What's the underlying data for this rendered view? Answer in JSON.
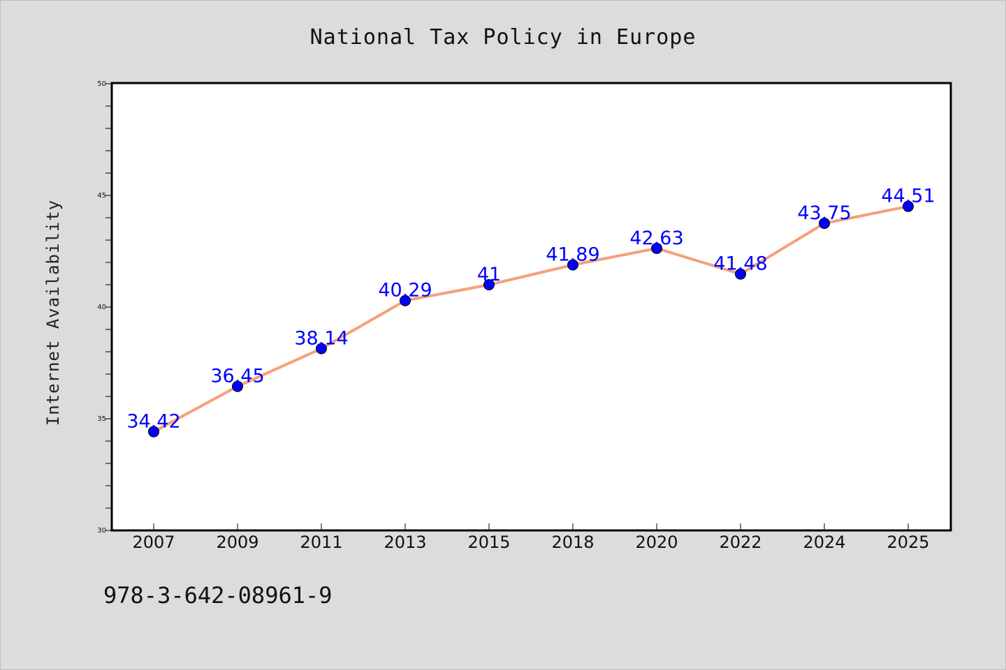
{
  "chart_data": {
    "type": "line",
    "title": "National Tax Policy in Europe",
    "xlabel": "",
    "ylabel": "Internet Availability",
    "categories": [
      "2007",
      "2009",
      "2011",
      "2013",
      "2015",
      "2018",
      "2020",
      "2022",
      "2024",
      "2025"
    ],
    "series": [
      {
        "values": [
          34.42,
          36.45,
          38.14,
          40.29,
          41,
          41.89,
          42.63,
          41.48,
          43.75,
          44.51
        ],
        "data_labels": [
          "34.42",
          "36.45",
          "38.14",
          "40.29",
          "41",
          "41.89",
          "42.63",
          "41.48",
          "43.75",
          "44.51"
        ],
        "line_color": "#f5a07a",
        "marker_color": "#0000ff"
      }
    ],
    "ylim": [
      30,
      50
    ],
    "yticks": [
      "30",
      "35",
      "40",
      "45",
      "50"
    ],
    "grid": false,
    "legend": "none"
  },
  "footnote": "978-3-642-08961-9",
  "colors": {
    "background": "#dcdcdc",
    "plot_background": "#ffffff",
    "axis": "#000000"
  }
}
